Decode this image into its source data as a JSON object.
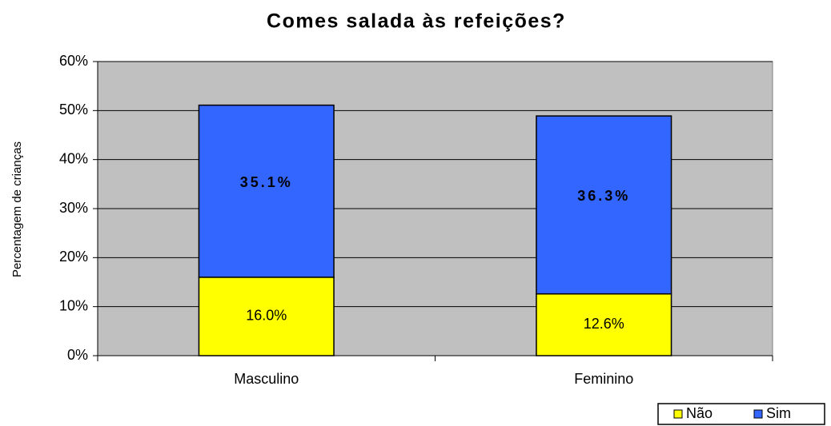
{
  "chart_data": {
    "type": "stacked_bar",
    "title": "Comes salada às refeições?",
    "y_label": "Percentagem de crianças",
    "categories": [
      "Masculino",
      "Feminino"
    ],
    "series": [
      {
        "name": "Não",
        "color": "#ffff00",
        "values": [
          16.0,
          12.6
        ],
        "value_labels": [
          "16.0%",
          "12.6%"
        ]
      },
      {
        "name": "Sim",
        "color": "#3366ff",
        "values": [
          35.1,
          36.3
        ],
        "value_labels": [
          "35.1%",
          "36.3%"
        ]
      }
    ],
    "ylim": [
      0,
      60
    ],
    "yticks": [
      {
        "value": 0,
        "label": "0%"
      },
      {
        "value": 10,
        "label": "10%"
      },
      {
        "value": 20,
        "label": "20%"
      },
      {
        "value": 30,
        "label": "30%"
      },
      {
        "value": 40,
        "label": "40%"
      },
      {
        "value": 50,
        "label": "50%"
      },
      {
        "value": 60,
        "label": "60%"
      }
    ],
    "grid": true,
    "legend": "bottom-right",
    "background": "#c0c0c0"
  }
}
